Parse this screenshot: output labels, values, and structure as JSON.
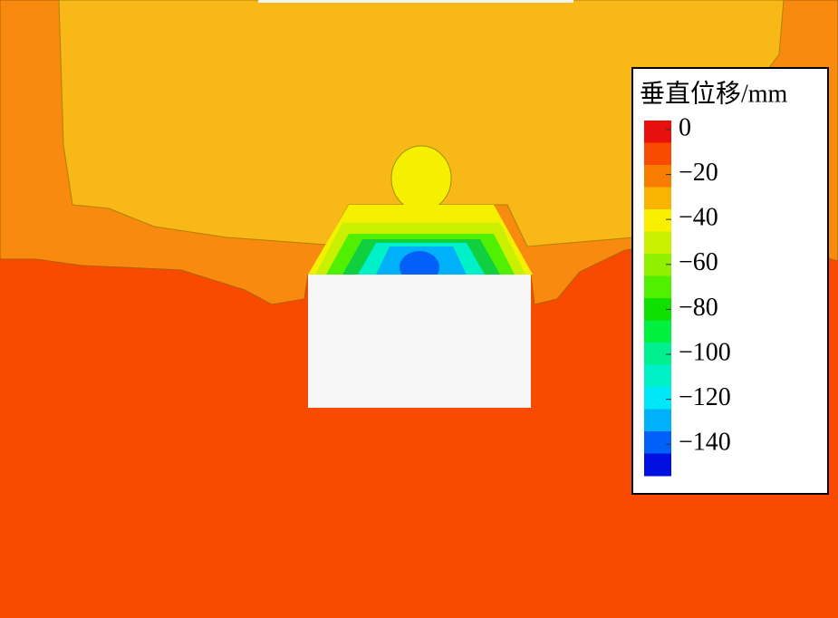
{
  "chart_data": {
    "type": "contour",
    "colorbar": {
      "title": "垂直位移/mm",
      "lim": [
        4,
        -154
      ],
      "ticks": [
        0,
        {
          "value": -20,
          "label": "−20"
        },
        {
          "value": -40,
          "label": "−40"
        },
        {
          "value": -60,
          "label": "−60"
        },
        {
          "value": -80,
          "label": "−80"
        },
        {
          "value": -100,
          "label": "−100"
        },
        {
          "value": -120,
          "label": "−120"
        },
        {
          "value": -140,
          "label": "−140"
        }
      ],
      "colors": [
        "#e8100c",
        "#f84a00",
        "#f87c00",
        "#f8b400",
        "#f8f000",
        "#c8f000",
        "#90f000",
        "#50f000",
        "#10e000",
        "#00f040",
        "#00f090",
        "#00f0c8",
        "#00e8f8",
        "#00b0f8",
        "#0060f8",
        "#0010e0"
      ]
    }
  }
}
